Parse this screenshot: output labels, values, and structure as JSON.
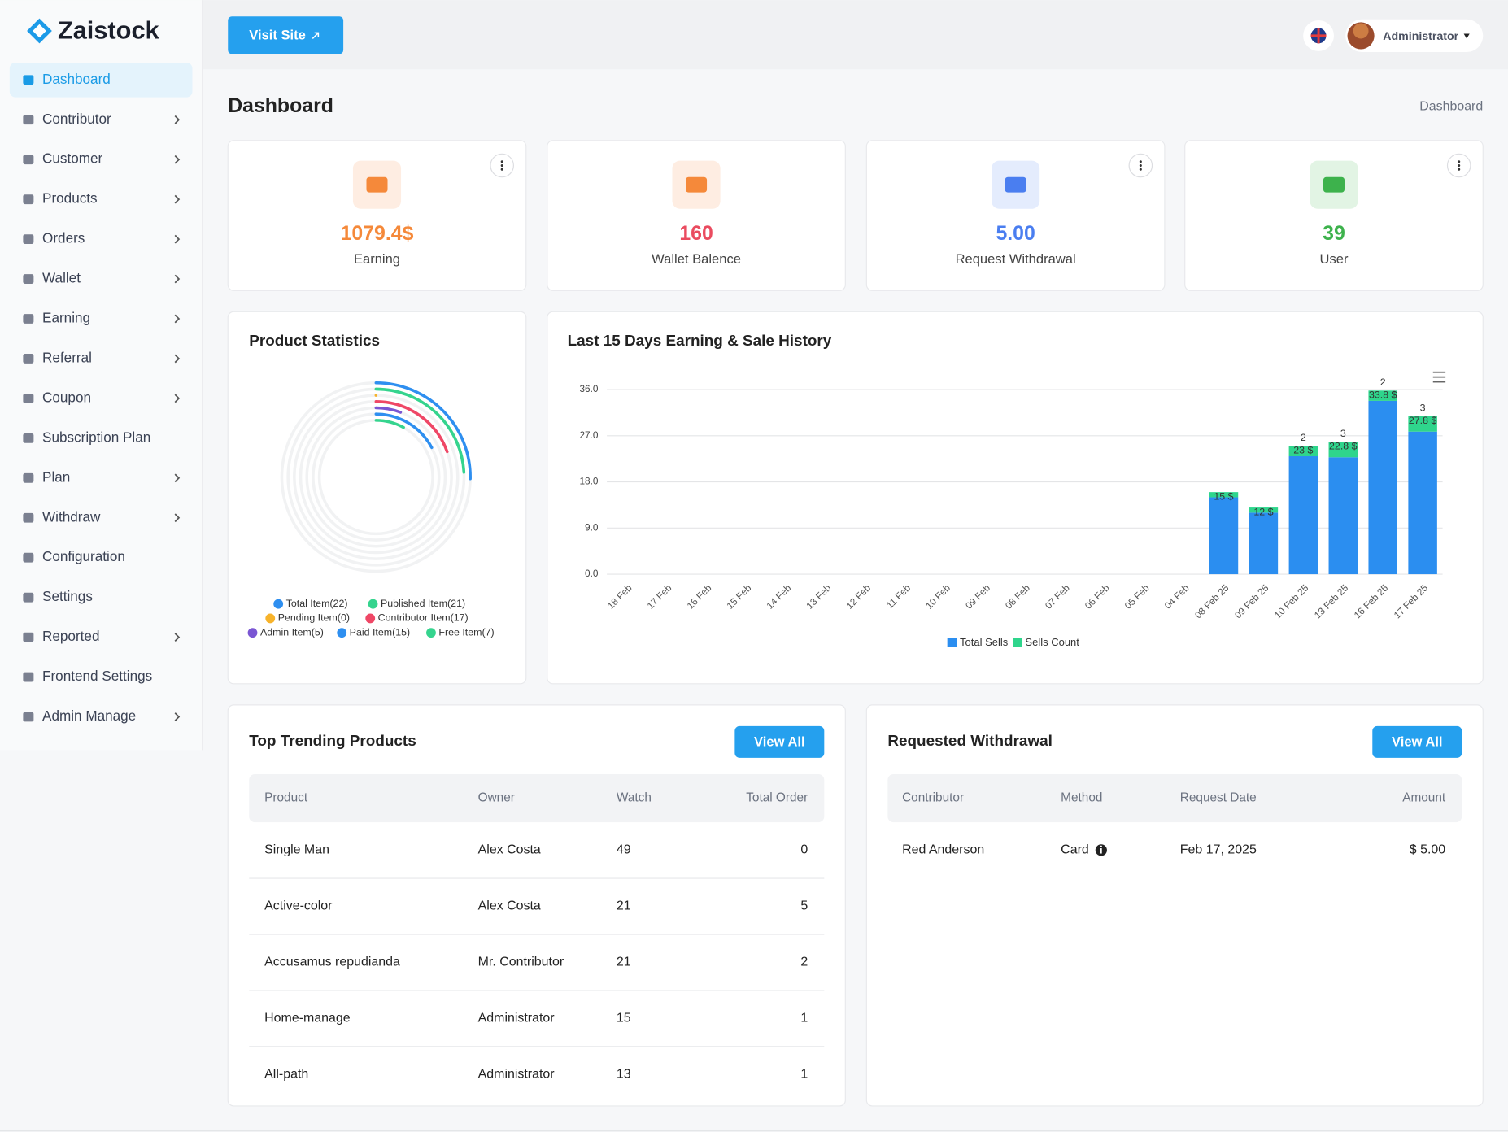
{
  "brand": "Zaistock",
  "sidebar": {
    "active": 0,
    "items": [
      {
        "label": "Dashboard",
        "submenu": false
      },
      {
        "label": "Contributor",
        "submenu": true
      },
      {
        "label": "Customer",
        "submenu": true
      },
      {
        "label": "Products",
        "submenu": true
      },
      {
        "label": "Orders",
        "submenu": true
      },
      {
        "label": "Wallet",
        "submenu": true
      },
      {
        "label": "Earning",
        "submenu": true
      },
      {
        "label": "Referral",
        "submenu": true
      },
      {
        "label": "Coupon",
        "submenu": true
      },
      {
        "label": "Subscription Plan",
        "submenu": false
      },
      {
        "label": "Plan",
        "submenu": true
      },
      {
        "label": "Withdraw",
        "submenu": true
      },
      {
        "label": "Configuration",
        "submenu": false
      },
      {
        "label": "Settings",
        "submenu": false
      },
      {
        "label": "Reported",
        "submenu": true
      },
      {
        "label": "Frontend Settings",
        "submenu": false
      },
      {
        "label": "Admin Manage",
        "submenu": true
      }
    ]
  },
  "header": {
    "visit_site": "Visit Site",
    "user": "Administrator"
  },
  "page": {
    "title": "Dashboard",
    "breadcrumb": "Dashboard"
  },
  "stats": [
    {
      "value": "1079.4$",
      "label": "Earning",
      "color": "#f5893a",
      "icon_color": "#f5893a",
      "menu": true
    },
    {
      "value": 160,
      "label": "Wallet Balence",
      "color": "#ea4b5f",
      "icon_color": "#f5893a",
      "menu": false
    },
    {
      "value": "5.00",
      "label": "Request Withdrawal",
      "color": "#4a7ef0",
      "icon_color": "#4a7ef0",
      "menu": true
    },
    {
      "value": 39,
      "label": "User",
      "color": "#3db24c",
      "icon_color": "#3db24c",
      "menu": true
    }
  ],
  "chart_data": [
    {
      "type": "radial",
      "title": "Product Statistics",
      "categories": [
        "Total Item(22)",
        "Published Item(21)",
        "Pending Item(0)",
        "Contributor Item(17)",
        "Admin Item(5)",
        "Paid Item(15)",
        "Free Item(7)"
      ],
      "values": [
        22,
        21,
        0,
        17,
        5,
        15,
        7
      ],
      "colors": [
        "#2e8ff0",
        "#35d48e",
        "#f7b32b",
        "#ef4766",
        "#7a56d3",
        "#2e8ff0",
        "#35d48e"
      ]
    },
    {
      "type": "stacked-bar",
      "title": "Last 15 Days Earning & Sale History",
      "categories": [
        "18 Feb",
        "17 Feb",
        "16 Feb",
        "15 Feb",
        "14 Feb",
        "13 Feb",
        "12 Feb",
        "11 Feb",
        "10 Feb",
        "09 Feb",
        "08 Feb",
        "07 Feb",
        "06 Feb",
        "05 Feb",
        "04 Feb",
        "08 Feb 25",
        "09 Feb 25",
        "10 Feb 25",
        "13 Feb 25",
        "16 Feb 25",
        "17 Feb 25"
      ],
      "series": [
        {
          "name": "Total Sells",
          "color": "#2b8ef0",
          "values": [
            0,
            0,
            0,
            0,
            0,
            0,
            0,
            0,
            0,
            0,
            0,
            0,
            0,
            0,
            0,
            15,
            12,
            23,
            22.8,
            33.8,
            27.8
          ],
          "value_labels": [
            null,
            null,
            null,
            null,
            null,
            null,
            null,
            null,
            null,
            null,
            null,
            null,
            null,
            null,
            null,
            "15 $",
            "12 $",
            "23 $",
            "22.8 $",
            "33.8 $",
            "27.8 $"
          ]
        },
        {
          "name": "Sells Count",
          "color": "#2fd58c",
          "values": [
            0,
            0,
            0,
            0,
            0,
            0,
            0,
            0,
            0,
            0,
            0,
            0,
            0,
            0,
            0,
            1,
            1,
            2,
            3,
            2,
            3
          ],
          "value_labels": [
            null,
            null,
            null,
            null,
            null,
            null,
            null,
            null,
            null,
            null,
            null,
            null,
            null,
            null,
            null,
            null,
            null,
            "2",
            "3",
            "2",
            "3"
          ]
        }
      ],
      "ylim": [
        0,
        36
      ],
      "yticks": [
        {
          "value": 0,
          "label": "0.0"
        },
        {
          "value": 9,
          "label": "9.0"
        },
        {
          "value": 18,
          "label": "18.0"
        },
        {
          "value": 27,
          "label": "27.0"
        },
        {
          "value": 36,
          "label": "36.0"
        }
      ],
      "grid": true
    }
  ],
  "trending": {
    "title": "Top Trending Products",
    "button": "View All",
    "columns": [
      "Product",
      "Owner",
      "Watch",
      "Total Order"
    ],
    "rows": [
      [
        "Single Man",
        "Alex Costa",
        49,
        0
      ],
      [
        "Active-color",
        "Alex Costa",
        21,
        5
      ],
      [
        "Accusamus repudianda",
        "Mr. Contributor",
        21,
        2
      ],
      [
        "Home-manage",
        "Administrator",
        15,
        1
      ],
      [
        "All-path",
        "Administrator",
        13,
        1
      ]
    ]
  },
  "withdrawals": {
    "title": "Requested Withdrawal",
    "button": "View All",
    "columns": [
      "Contributor",
      "Method",
      "Request Date",
      "Amount"
    ],
    "rows": [
      [
        "Red Anderson",
        "Card",
        "Feb 17, 2025",
        "$ 5.00"
      ]
    ]
  }
}
